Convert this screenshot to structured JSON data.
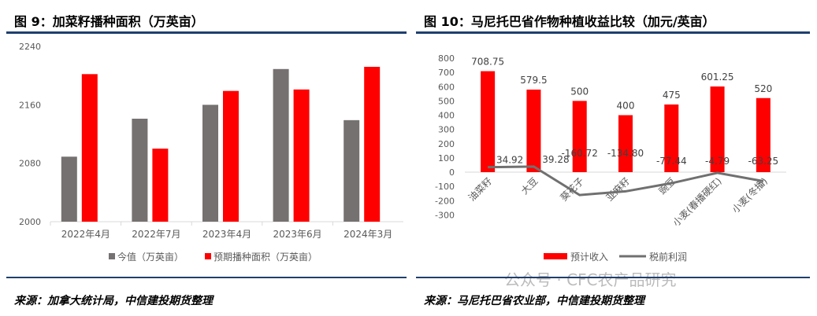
{
  "left": {
    "title": "图 9：加菜籽播种面积（万英亩）",
    "source": "来源：加拿大统计局，中信建投期货整理"
  },
  "right": {
    "title": "图 10：马尼托巴省作物种植收益比较（加元/英亩）",
    "source": "来源：马尼托巴省农业部，中信建投期货整理"
  },
  "watermark": "公众号 · CFC农产品研究",
  "colors": {
    "red": "#ff0000",
    "gray": "#767171",
    "line": "#707070"
  },
  "chart_data": [
    {
      "type": "bar",
      "title": "图 9：加菜籽播种面积（万英亩）",
      "categories": [
        "2022年4月",
        "2022年7月",
        "2023年4月",
        "2023年6月",
        "2024年3月"
      ],
      "series": [
        {
          "name": "今值（万英亩）",
          "values": [
            2089,
            2141,
            2160,
            2209,
            2139
          ]
        },
        {
          "name": "预期播种面积（万英亩）",
          "values": [
            2202,
            2100,
            2179,
            2181,
            2212
          ]
        }
      ],
      "ylim": [
        2000,
        2240
      ],
      "yticks": [
        2000,
        2080,
        2160,
        2240
      ],
      "legend": "bottom"
    },
    {
      "type": "bar",
      "title": "图 10：马尼托巴省作物种植收益比较（加元/英亩）",
      "categories": [
        "油菜籽",
        "大豆",
        "葵花子",
        "亚麻籽",
        "豌豆",
        "小麦(春播硬红)",
        "小麦(冬播)"
      ],
      "series": [
        {
          "name": "预计收入",
          "type": "bar",
          "values": [
            708.75,
            579.5,
            500,
            400,
            475,
            601.25,
            520
          ],
          "labels": [
            "708.75",
            "579.5",
            "500",
            "400",
            "475",
            "601.25",
            "520"
          ]
        },
        {
          "name": "税前利润",
          "type": "line",
          "values": [
            34.92,
            39.28,
            -160.72,
            -134.8,
            -77.44,
            -4.79,
            -63.25
          ],
          "labels": [
            "34.92",
            "39.28",
            "-160.72",
            "-134.80",
            "-77.44",
            "-4.79",
            "-63.25"
          ]
        }
      ],
      "ylim": [
        -300,
        800
      ],
      "yticks": [
        800,
        700,
        600,
        500,
        400,
        300,
        200,
        100,
        0,
        -100,
        -200,
        -300
      ],
      "legend": "bottom"
    }
  ]
}
